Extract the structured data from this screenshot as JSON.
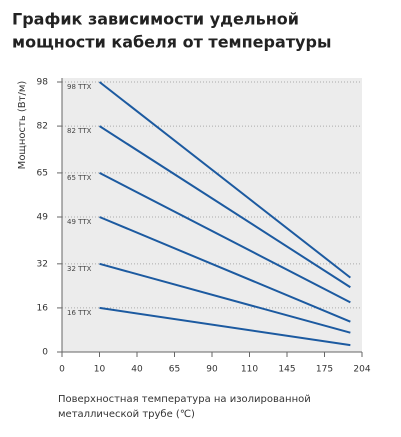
{
  "chart_data": {
    "type": "line",
    "title": [
      "График зависимости удельной",
      "мощности кабеля от температуры"
    ],
    "y_label": "Мощность (Вт/м)",
    "x_label": [
      "Поверхностная температура на изолированной",
      "металлической трубе (℃)"
    ],
    "x": [
      10,
      195
    ],
    "series": [
      {
        "name": "98 ТТХ",
        "color": "#1c5aa0",
        "values": [
          98,
          27
        ]
      },
      {
        "name": "82 ТТХ",
        "color": "#1c5aa0",
        "values": [
          82,
          23.5
        ]
      },
      {
        "name": "65 ТТХ",
        "color": "#1c5aa0",
        "values": [
          65,
          18
        ]
      },
      {
        "name": "49 ТТХ",
        "color": "#1c5aa0",
        "values": [
          49,
          11
        ]
      },
      {
        "name": "32 ТТХ",
        "color": "#1c5aa0",
        "values": [
          32,
          7
        ]
      },
      {
        "name": "16 ТТХ",
        "color": "#1c5aa0",
        "values": [
          16,
          2.5
        ]
      }
    ],
    "xlim": [
      0,
      204
    ],
    "xticks": [
      0,
      10,
      40,
      65,
      90,
      110,
      145,
      175,
      204
    ],
    "ylim": [
      0,
      98
    ],
    "yticks": [
      0,
      16,
      32,
      49,
      65,
      82,
      98
    ],
    "grid": true
  }
}
